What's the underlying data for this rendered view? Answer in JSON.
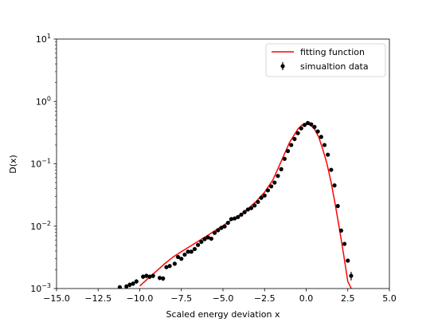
{
  "chart_data": {
    "type": "scatter",
    "xlabel": "Scaled energy deviation x",
    "ylabel": "D(x)",
    "xlim": [
      -15.0,
      5.0
    ],
    "ylim": [
      0.001,
      10
    ],
    "yscale": "log",
    "grid": false,
    "legend_position": "top-right",
    "x_ticks": [
      {
        "value": -15.0,
        "label": "−15.0"
      },
      {
        "value": -12.5,
        "label": "−12.5"
      },
      {
        "value": -10.0,
        "label": "−10.0"
      },
      {
        "value": -7.5,
        "label": "−7.5"
      },
      {
        "value": -5.0,
        "label": "−5.0"
      },
      {
        "value": -2.5,
        "label": "−2.5"
      },
      {
        "value": 0.0,
        "label": "0.0"
      },
      {
        "value": 2.5,
        "label": "2.5"
      },
      {
        "value": 5.0,
        "label": "5.0"
      }
    ],
    "y_ticks": [
      {
        "value": 0.001,
        "base": "10",
        "exp": "−3"
      },
      {
        "value": 0.01,
        "base": "10",
        "exp": "−2"
      },
      {
        "value": 0.1,
        "base": "10",
        "exp": "−1"
      },
      {
        "value": 1,
        "base": "10",
        "exp": "0"
      },
      {
        "value": 10,
        "base": "10",
        "exp": "1"
      }
    ],
    "series": [
      {
        "name": "fitting function",
        "kind": "line",
        "color": "#ff0000",
        "x": [
          -10.0,
          -9.5,
          -9.0,
          -8.5,
          -8.0,
          -7.5,
          -7.0,
          -6.5,
          -6.0,
          -5.5,
          -5.0,
          -4.5,
          -4.0,
          -3.5,
          -3.0,
          -2.5,
          -2.0,
          -1.5,
          -1.0,
          -0.5,
          -0.25,
          0.0,
          0.25,
          0.5,
          0.75,
          1.0,
          1.25,
          1.5,
          1.75,
          2.0,
          2.25,
          2.5,
          2.75
        ],
        "y": [
          0.0011,
          0.00145,
          0.0019,
          0.0025,
          0.0032,
          0.0039,
          0.0047,
          0.0057,
          0.0069,
          0.0084,
          0.0102,
          0.0125,
          0.015,
          0.019,
          0.025,
          0.035,
          0.055,
          0.11,
          0.22,
          0.36,
          0.42,
          0.44,
          0.42,
          0.36,
          0.27,
          0.17,
          0.1,
          0.05,
          0.022,
          0.009,
          0.0035,
          0.0013,
          0.00095
        ]
      },
      {
        "name": "simualtion data",
        "kind": "errorbar",
        "color": "#000000",
        "x": [
          -11.2,
          -10.8,
          -10.6,
          -10.4,
          -10.2,
          -9.8,
          -9.6,
          -9.4,
          -9.2,
          -8.8,
          -8.6,
          -8.4,
          -8.2,
          -7.9,
          -7.7,
          -7.5,
          -7.3,
          -7.1,
          -6.9,
          -6.7,
          -6.5,
          -6.3,
          -6.1,
          -5.9,
          -5.7,
          -5.5,
          -5.3,
          -5.1,
          -4.9,
          -4.7,
          -4.5,
          -4.3,
          -4.1,
          -3.9,
          -3.7,
          -3.5,
          -3.3,
          -3.1,
          -2.9,
          -2.7,
          -2.5,
          -2.3,
          -2.1,
          -1.9,
          -1.7,
          -1.5,
          -1.3,
          -1.1,
          -0.9,
          -0.7,
          -0.5,
          -0.3,
          -0.1,
          0.1,
          0.3,
          0.5,
          0.7,
          0.9,
          1.1,
          1.3,
          1.5,
          1.7,
          1.9,
          2.1,
          2.3,
          2.5,
          2.7
        ],
        "y": [
          0.00105,
          0.00108,
          0.00115,
          0.0012,
          0.0013,
          0.00155,
          0.0016,
          0.00155,
          0.0016,
          0.00148,
          0.00145,
          0.0022,
          0.0023,
          0.0025,
          0.0032,
          0.003,
          0.0035,
          0.0039,
          0.0039,
          0.0043,
          0.005,
          0.0056,
          0.0062,
          0.0066,
          0.0063,
          0.0078,
          0.0086,
          0.0094,
          0.0099,
          0.0113,
          0.013,
          0.0133,
          0.014,
          0.0153,
          0.0168,
          0.0185,
          0.0195,
          0.0215,
          0.0245,
          0.0285,
          0.031,
          0.0375,
          0.0435,
          0.05,
          0.064,
          0.082,
          0.12,
          0.16,
          0.2,
          0.25,
          0.31,
          0.37,
          0.42,
          0.45,
          0.43,
          0.39,
          0.33,
          0.27,
          0.2,
          0.14,
          0.08,
          0.045,
          0.021,
          0.0085,
          0.0052,
          0.0028,
          0.0016
        ],
        "yerr": [
          8e-05,
          9e-05,
          0.0001,
          0.0001,
          0.00011,
          0.00013,
          0.00013,
          0.00013,
          0.00013,
          0.00012,
          0.00012,
          0.00015,
          0.00015,
          0.00015,
          0.00016,
          0.00016,
          0.00016,
          0.00017,
          0.00017,
          0.00017,
          0.00018,
          0.0002,
          0.0002,
          0.0002,
          0.0002,
          0.00022,
          0.00024,
          0.00025,
          0.00025,
          0.00028,
          0.0003,
          0.0003,
          0.00032,
          0.00034,
          0.00036,
          0.0004,
          0.0004,
          0.00045,
          0.0005,
          0.00055,
          0.0006,
          0.0007,
          0.0008,
          0.0009,
          0.0011,
          0.0013,
          0.002,
          0.0025,
          0.003,
          0.0035,
          0.004,
          0.005,
          0.005,
          0.006,
          0.005,
          0.005,
          0.004,
          0.004,
          0.003,
          0.0025,
          0.0016,
          0.0009,
          0.0005,
          0.0003,
          0.0003,
          0.0002,
          0.00025
        ]
      }
    ]
  }
}
